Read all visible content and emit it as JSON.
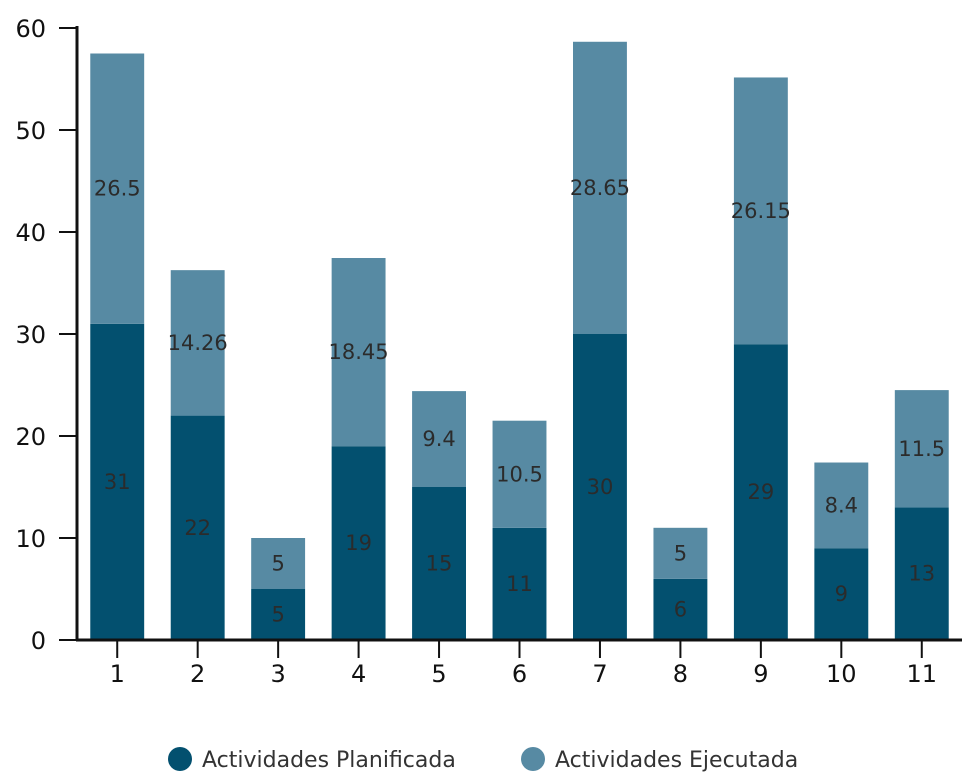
{
  "chart_data": {
    "type": "bar",
    "stacked": true,
    "categories": [
      "1",
      "2",
      "3",
      "4",
      "5",
      "6",
      "7",
      "8",
      "9",
      "10",
      "11"
    ],
    "series": [
      {
        "name": "Actividades Planificada",
        "color": "#03506f",
        "values": [
          31,
          22,
          5,
          19,
          15,
          11,
          30,
          6,
          29,
          9,
          13
        ],
        "labels": [
          "31",
          "22",
          "5",
          "19",
          "15",
          "11",
          "30",
          "6",
          "29",
          "9",
          "13"
        ]
      },
      {
        "name": "Actividades Ejecutada",
        "color": "#578aa3",
        "values": [
          26.5,
          14.26,
          5,
          18.45,
          9.4,
          10.5,
          28.65,
          5,
          26.15,
          8.4,
          11.5
        ],
        "labels": [
          "26.5",
          "14.26",
          "5",
          "18.45",
          "9.4",
          "10.5",
          "28.65",
          "5",
          "26.15",
          "8.4",
          "11.5"
        ]
      }
    ],
    "ylim": [
      0,
      60
    ],
    "yticks": [
      0,
      10,
      20,
      30,
      40,
      50,
      60
    ],
    "ytick_labels": [
      "0",
      "10",
      "20",
      "30",
      "40",
      "50",
      "60"
    ],
    "grid": false,
    "legend": "bottom"
  }
}
